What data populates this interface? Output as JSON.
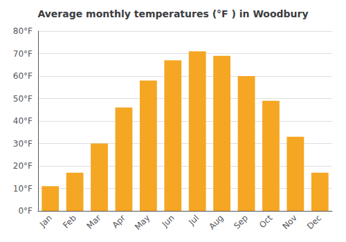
{
  "chart_data": {
    "type": "bar",
    "title": "Average monthly temperatures (°F ) in Woodbury",
    "categories": [
      "Jan",
      "Feb",
      "Mar",
      "Apr",
      "May",
      "Jun",
      "Jul",
      "Aug",
      "Sep",
      "Oct",
      "Nov",
      "Dec"
    ],
    "values": [
      11,
      17,
      30,
      46,
      58,
      67,
      71,
      69,
      60,
      49,
      33,
      17
    ],
    "color": "#F5A623",
    "ylim": [
      0,
      80
    ],
    "yticks": [
      {
        "value": 0,
        "label": "0°F"
      },
      {
        "value": 10,
        "label": "10°F"
      },
      {
        "value": 20,
        "label": "20°F"
      },
      {
        "value": 30,
        "label": "30°F"
      },
      {
        "value": 40,
        "label": "40°F"
      },
      {
        "value": 50,
        "label": "50°F"
      },
      {
        "value": 60,
        "label": "60°F"
      },
      {
        "value": 70,
        "label": "70°F"
      },
      {
        "value": 80,
        "label": "80°F"
      }
    ],
    "grid": true
  }
}
